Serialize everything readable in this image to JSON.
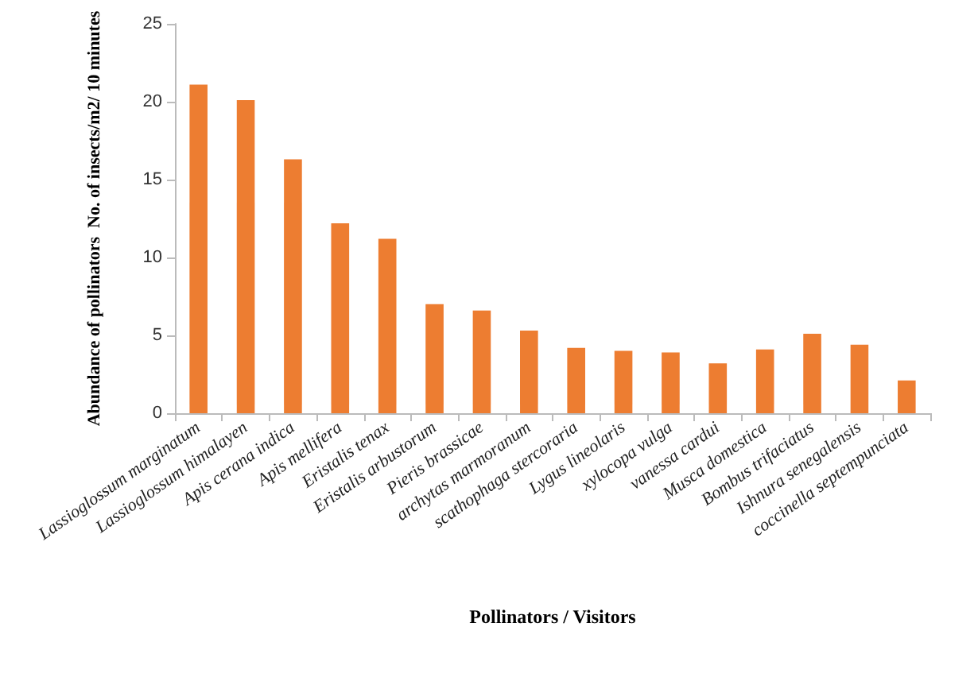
{
  "chart_data": {
    "type": "bar",
    "xlabel": "Pollinators / Visitors",
    "ylabel": "Abundance of pollinators  No. of insects/m2/ 10 minutes",
    "categories": [
      "Lassioglossum marginatum",
      "Lassioglossum himalayen",
      "Apis cerana indica",
      "Apis mellifera",
      "Eristalis tenax",
      "Eristalis arbustorum",
      "Pieris brassicae",
      "archytas marmoranum",
      "scathophaga stercoraria",
      "Lygus lineolaris",
      "xylocopa vulga",
      "vanessa cardui",
      "Musca domestica",
      "Bombus trifaciatus",
      "Ishnura senegalensis",
      "coccinella septempunciata"
    ],
    "values": [
      21.1,
      20.1,
      16.3,
      12.2,
      11.2,
      7.0,
      6.6,
      5.3,
      4.2,
      4.0,
      3.9,
      3.2,
      4.1,
      5.1,
      4.4,
      2.1
    ],
    "color": "#ed7d31",
    "ylim": [
      0,
      25
    ],
    "yticks": [
      0,
      5,
      10,
      15,
      20,
      25
    ],
    "grid": false
  }
}
